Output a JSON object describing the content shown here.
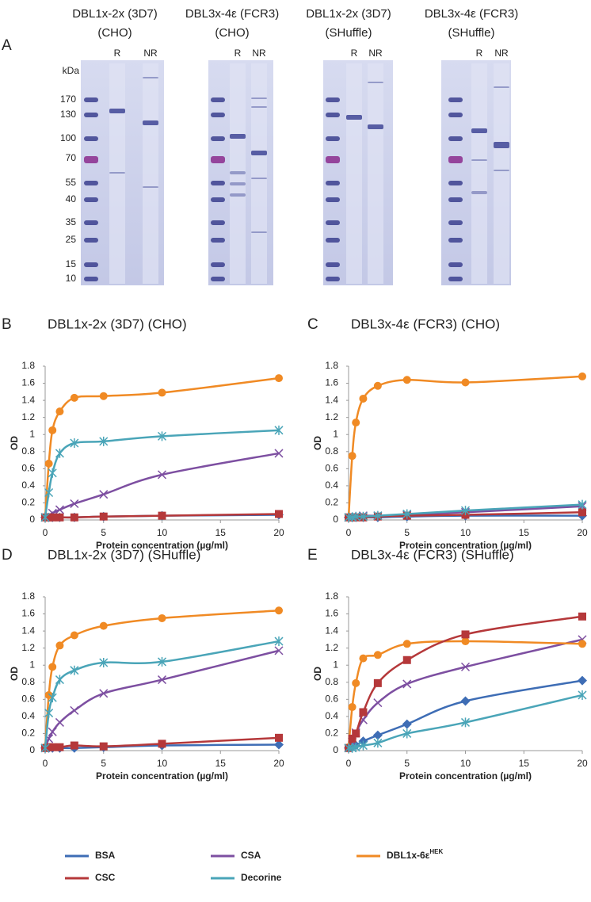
{
  "gel_panel": {
    "label": "A",
    "unit": "kDa",
    "markers": [
      170,
      130,
      100,
      70,
      55,
      40,
      35,
      25,
      15,
      10
    ],
    "lanes": [
      {
        "title": [
          "DBL1x-2x (3D7)",
          "(CHO)"
        ],
        "reduced": "R",
        "non_reduced": "NR"
      },
      {
        "title": [
          "DBL3x-4ε (FCR3)",
          "(CHO)"
        ],
        "reduced": "R",
        "non_reduced": "NR"
      },
      {
        "title": [
          "DBL1x-2x (3D7)",
          "(SHuffle)"
        ],
        "reduced": "R",
        "non_reduced": "NR"
      },
      {
        "title": [
          "DBL3x-4ε (FCR3)",
          "(SHuffle)"
        ],
        "reduced": "R",
        "non_reduced": "NR"
      }
    ]
  },
  "legend": [
    {
      "name": "BSA",
      "color": "#3e6db5",
      "marker": "diamond"
    },
    {
      "name": "CSA",
      "color": "#7d4fa1",
      "marker": "x"
    },
    {
      "name": "DBL1x-6ε",
      "name_sup": "HEK",
      "color": "#f08a24",
      "marker": "circle"
    },
    {
      "name": "CSC",
      "color": "#b5383a",
      "marker": "square"
    },
    {
      "name": "Decorine",
      "color": "#4aa5b8",
      "marker": "star"
    }
  ],
  "chart_data": [
    {
      "type": "line",
      "panel_label": "B",
      "title": "DBL1x-2x (3D7) (CHO)",
      "x_label": "Protein concentration (µg/ml)",
      "y_label": "OD",
      "x": [
        0,
        0.3125,
        0.625,
        1.25,
        2.5,
        5,
        10,
        20
      ],
      "xlim": [
        0,
        20
      ],
      "xticks": [
        0,
        5,
        10,
        15,
        20
      ],
      "ylim": [
        0,
        1.8
      ],
      "yticks": [
        0,
        0.2,
        0.4,
        0.6,
        0.8,
        1,
        1.2,
        1.4,
        1.6,
        1.8
      ],
      "series": [
        {
          "values": [
            0.03,
            0.03,
            0.03,
            0.03,
            0.03,
            0.04,
            0.05,
            0.06
          ]
        },
        {
          "values": [
            0.03,
            0.05,
            0.08,
            0.12,
            0.19,
            0.3,
            0.53,
            0.78
          ]
        },
        {
          "values": [
            0.03,
            0.66,
            1.05,
            1.27,
            1.43,
            1.45,
            1.49,
            1.66
          ]
        },
        {
          "values": [
            0.03,
            0.03,
            0.03,
            0.03,
            0.03,
            0.04,
            0.05,
            0.07
          ]
        },
        {
          "values": [
            0.03,
            0.32,
            0.55,
            0.78,
            0.9,
            0.92,
            0.98,
            1.05
          ]
        }
      ]
    },
    {
      "type": "line",
      "panel_label": "C",
      "title": "DBL3x-4ε (FCR3) (CHO)",
      "x_label": "Protein concentration (µg/ml)",
      "y_label": "OD",
      "x": [
        0,
        0.3125,
        0.625,
        1.25,
        2.5,
        5,
        10,
        20
      ],
      "xlim": [
        0,
        20
      ],
      "xticks": [
        0,
        5,
        10,
        15,
        20
      ],
      "ylim": [
        0,
        1.8
      ],
      "yticks": [
        0,
        0.2,
        0.4,
        0.6,
        0.8,
        1,
        1.2,
        1.4,
        1.6,
        1.8
      ],
      "series": [
        {
          "values": [
            0.03,
            0.03,
            0.03,
            0.03,
            0.03,
            0.04,
            0.05,
            0.05
          ]
        },
        {
          "values": [
            0.03,
            0.04,
            0.04,
            0.05,
            0.05,
            0.06,
            0.09,
            0.16
          ]
        },
        {
          "values": [
            0.03,
            0.75,
            1.14,
            1.42,
            1.57,
            1.64,
            1.61,
            1.68
          ]
        },
        {
          "values": [
            0.03,
            0.03,
            0.03,
            0.03,
            0.04,
            0.05,
            0.06,
            0.09
          ]
        },
        {
          "values": [
            0.03,
            0.03,
            0.04,
            0.04,
            0.05,
            0.07,
            0.11,
            0.18
          ]
        }
      ]
    },
    {
      "type": "line",
      "panel_label": "D",
      "title": "DBL1x-2x (3D7) (SHuffle)",
      "x_label": "Protein concentration (µg/ml)",
      "y_label": "OD",
      "x": [
        0,
        0.3125,
        0.625,
        1.25,
        2.5,
        5,
        10,
        20
      ],
      "xlim": [
        0,
        20
      ],
      "xticks": [
        0,
        5,
        10,
        15,
        20
      ],
      "ylim": [
        0,
        1.8
      ],
      "yticks": [
        0,
        0.2,
        0.4,
        0.6,
        0.8,
        1,
        1.2,
        1.4,
        1.6,
        1.8
      ],
      "series": [
        {
          "values": [
            0.03,
            0.03,
            0.03,
            0.03,
            0.03,
            0.04,
            0.06,
            0.07
          ]
        },
        {
          "values": [
            0.03,
            0.14,
            0.22,
            0.33,
            0.47,
            0.67,
            0.83,
            1.17
          ]
        },
        {
          "values": [
            0.04,
            0.65,
            0.98,
            1.23,
            1.35,
            1.46,
            1.55,
            1.64
          ]
        },
        {
          "values": [
            0.03,
            0.04,
            0.04,
            0.04,
            0.06,
            0.05,
            0.08,
            0.15
          ]
        },
        {
          "values": [
            0.03,
            0.44,
            0.62,
            0.83,
            0.94,
            1.03,
            1.04,
            1.28
          ]
        }
      ]
    },
    {
      "type": "line",
      "panel_label": "E",
      "title": "DBL3x-4ε (FCR3) (SHuffle)",
      "x_label": "Protein concentration (µg/ml)",
      "y_label": "OD",
      "x": [
        0,
        0.3125,
        0.625,
        1.25,
        2.5,
        5,
        10,
        20
      ],
      "xlim": [
        0,
        20
      ],
      "xticks": [
        0,
        5,
        10,
        15,
        20
      ],
      "ylim": [
        0,
        1.8
      ],
      "yticks": [
        0,
        0.2,
        0.4,
        0.6,
        0.8,
        1,
        1.2,
        1.4,
        1.6,
        1.8
      ],
      "series": [
        {
          "values": [
            0.03,
            0.04,
            0.06,
            0.11,
            0.18,
            0.31,
            0.58,
            0.82
          ]
        },
        {
          "values": [
            0.03,
            0.1,
            0.21,
            0.36,
            0.56,
            0.78,
            0.98,
            1.3
          ]
        },
        {
          "values": [
            0.04,
            0.51,
            0.79,
            1.08,
            1.12,
            1.25,
            1.28,
            1.25
          ]
        },
        {
          "values": [
            0.03,
            0.14,
            0.2,
            0.45,
            0.79,
            1.06,
            1.36,
            1.57
          ]
        },
        {
          "values": [
            0.03,
            0.03,
            0.04,
            0.06,
            0.09,
            0.2,
            0.33,
            0.65
          ]
        }
      ]
    }
  ]
}
